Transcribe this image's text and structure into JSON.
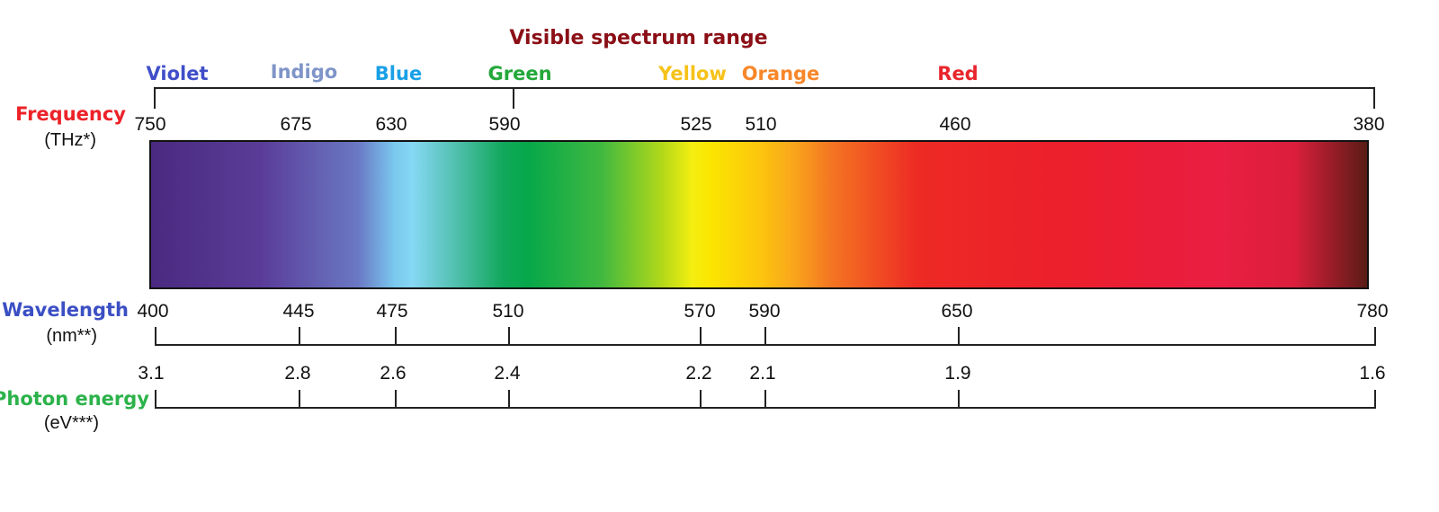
{
  "title": "Visible spectrum range",
  "colors": [
    {
      "name": "Violet",
      "color": "#3f4fc8"
    },
    {
      "name": "Indigo",
      "color": "#7f95c8"
    },
    {
      "name": "Blue",
      "color": "#1aa0e6"
    },
    {
      "name": "Green",
      "color": "#23a83a"
    },
    {
      "name": "Yellow",
      "color": "#f6c21a"
    },
    {
      "name": "Orange",
      "color": "#f7872a"
    },
    {
      "name": "Red",
      "color": "#e8262c"
    }
  ],
  "frequency": {
    "label": "Frequency",
    "unit": "(THz*)",
    "color": "#ec2228",
    "ticks": [
      "750",
      "675",
      "630",
      "590",
      "525",
      "510",
      "460",
      "380"
    ]
  },
  "wavelength": {
    "label": "Wavelength",
    "unit": "(nm**)",
    "color": "#3b4fc4",
    "ticks": [
      "400",
      "445",
      "475",
      "510",
      "570",
      "590",
      "650",
      "780"
    ]
  },
  "photon_energy": {
    "label": "Photon energy",
    "unit": "(eV***)",
    "color": "#2cb24a",
    "ticks": [
      "3.1",
      "2.8",
      "2.6",
      "2.4",
      "2.2",
      "2.1",
      "1.9",
      "1.6"
    ]
  }
}
